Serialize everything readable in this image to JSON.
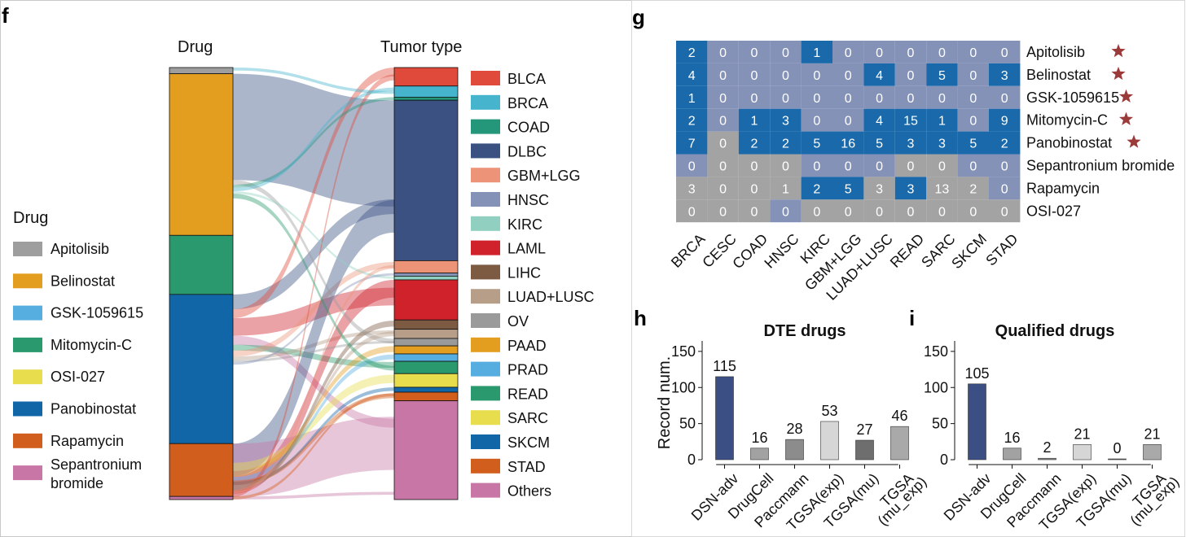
{
  "panels": {
    "f": "f",
    "g": "g",
    "h": "h",
    "i": "i"
  },
  "colors": {
    "Apitolisib": "#9e9e9e",
    "Belinostat": "#e39e1f",
    "GSK-1059615": "#56ade0",
    "Mitomycin-C": "#2a9a6e",
    "OSI-027": "#e7dd4d",
    "Panobinostat": "#1166a8",
    "Rapamycin": "#d15e1d",
    "Sepantronium bromide": "#c776a6",
    "heatmap_significant": "#1a6aab",
    "heatmap_rest": "#8592b8",
    "heatmap_grey": "#a3a3a3",
    "bar_highlight": "#3b4f85",
    "star": "#9c3a3a",
    "value_highlight": "#9c3a3a"
  },
  "sankey": {
    "left_header": "Drug",
    "right_header": "Tumor type",
    "legend_title": "Drug",
    "drug_legend": [
      {
        "label": "Apitolisib",
        "color": "#9e9e9e"
      },
      {
        "label": "Belinostat",
        "color": "#e39e1f"
      },
      {
        "label": "GSK-1059615",
        "color": "#56ade0"
      },
      {
        "label": "Mitomycin-C",
        "color": "#2a9a6e"
      },
      {
        "label": "OSI-027",
        "color": "#e7dd4d"
      },
      {
        "label": "Panobinostat",
        "color": "#1166a8"
      },
      {
        "label": "Rapamycin",
        "color": "#d15e1d"
      },
      {
        "label": "Sepantronium",
        "label2": "bromide",
        "color": "#c776a6"
      }
    ],
    "drug_bar": [
      {
        "name": "Apitolisib",
        "color": "#9e9e9e",
        "weight": 1
      },
      {
        "name": "Belinostat",
        "color": "#e39e1f",
        "weight": 26
      },
      {
        "name": "Mitomycin-C",
        "color": "#2a9a6e",
        "weight": 9.5
      },
      {
        "name": "Panobinostat",
        "color": "#1166a8",
        "weight": 24
      },
      {
        "name": "Rapamycin",
        "color": "#d15e1d",
        "weight": 8.5
      },
      {
        "name": "Sepantronium bromide",
        "color": "#c776a6",
        "weight": 0.5
      }
    ],
    "tumor_legend": [
      {
        "label": "BLCA",
        "color": "#df4a3a"
      },
      {
        "label": "BRCA",
        "color": "#46b4cc"
      },
      {
        "label": "COAD",
        "color": "#24977a"
      },
      {
        "label": "DLBC",
        "color": "#3a5182"
      },
      {
        "label": "GBM+LGG",
        "color": "#ec9378"
      },
      {
        "label": "HNSC",
        "color": "#8492b7"
      },
      {
        "label": "KIRC",
        "color": "#91d0c0"
      },
      {
        "label": "LAML",
        "color": "#d0222a"
      },
      {
        "label": "LIHC",
        "color": "#7d5b42"
      },
      {
        "label": "LUAD+LUSC",
        "color": "#b69e88"
      },
      {
        "label": "OV",
        "color": "#9a9a9a"
      },
      {
        "label": "PAAD",
        "color": "#e39e1f"
      },
      {
        "label": "PRAD",
        "color": "#56ade0"
      },
      {
        "label": "READ",
        "color": "#2a9a6e"
      },
      {
        "label": "SARC",
        "color": "#e7dd4d"
      },
      {
        "label": "SKCM",
        "color": "#1166a8"
      },
      {
        "label": "STAD",
        "color": "#d15e1d"
      },
      {
        "label": "Others",
        "color": "#c776a6"
      }
    ],
    "tumor_bar": [
      {
        "name": "BLCA",
        "color": "#df4a3a",
        "weight": 3
      },
      {
        "name": "BRCA",
        "color": "#46b4cc",
        "weight": 1.8
      },
      {
        "name": "COAD",
        "color": "#24977a",
        "weight": 0.5
      },
      {
        "name": "DLBC",
        "color": "#3a5182",
        "weight": 26
      },
      {
        "name": "GBM+LGG",
        "color": "#ec9378",
        "weight": 2
      },
      {
        "name": "HNSC",
        "color": "#8492b7",
        "weight": 0.5
      },
      {
        "name": "KIRC",
        "color": "#91d0c0",
        "weight": 0.6
      },
      {
        "name": "LAML",
        "color": "#d0222a",
        "weight": 6.5
      },
      {
        "name": "LIHC",
        "color": "#7d5b42",
        "weight": 1.5
      },
      {
        "name": "LUAD+LUSC",
        "color": "#b69e88",
        "weight": 1.5
      },
      {
        "name": "OV",
        "color": "#9a9a9a",
        "weight": 1.2
      },
      {
        "name": "PAAD",
        "color": "#e39e1f",
        "weight": 1.3
      },
      {
        "name": "PRAD",
        "color": "#56ade0",
        "weight": 1.2
      },
      {
        "name": "READ",
        "color": "#2a9a6e",
        "weight": 2
      },
      {
        "name": "SARC",
        "color": "#e7dd4d",
        "weight": 2.2
      },
      {
        "name": "SKCM",
        "color": "#1166a8",
        "weight": 0.8
      },
      {
        "name": "STAD",
        "color": "#d15e1d",
        "weight": 1.4
      },
      {
        "name": "Others",
        "color": "#c776a6",
        "weight": 16
      }
    ]
  },
  "chart_data": [
    {
      "type": "heatmap",
      "panel": "g",
      "columns": [
        "BRCA",
        "CESC",
        "COAD",
        "HNSC",
        "KIRC",
        "GBM+LGG",
        "LUAD+LUSC",
        "READ",
        "SARC",
        "SKCM",
        "STAD"
      ],
      "rows": [
        "Apitolisib",
        "Belinostat",
        "GSK-1059615",
        "Mitomycin-C",
        "Panobinostat",
        "Sepantronium bromide",
        "Rapamycin",
        "OSI-027"
      ],
      "starred_rows": [
        "Apitolisib",
        "Belinostat",
        "GSK-1059615",
        "Mitomycin-C",
        "Panobinostat"
      ],
      "values": [
        [
          2,
          0,
          0,
          0,
          1,
          0,
          0,
          0,
          0,
          0,
          0
        ],
        [
          4,
          0,
          0,
          0,
          0,
          0,
          4,
          0,
          5,
          0,
          3
        ],
        [
          1,
          0,
          0,
          0,
          0,
          0,
          0,
          0,
          0,
          0,
          0
        ],
        [
          2,
          0,
          1,
          3,
          0,
          0,
          4,
          15,
          1,
          0,
          9
        ],
        [
          7,
          0,
          2,
          2,
          5,
          16,
          5,
          3,
          3,
          5,
          2
        ],
        [
          0,
          0,
          0,
          0,
          0,
          0,
          0,
          0,
          0,
          0,
          0
        ],
        [
          3,
          0,
          0,
          1,
          2,
          5,
          3,
          3,
          13,
          2,
          0
        ],
        [
          0,
          0,
          0,
          0,
          0,
          0,
          0,
          0,
          0,
          0,
          0
        ]
      ],
      "cell_color_class": [
        [
          "S",
          "R",
          "R",
          "R",
          "S",
          "R",
          "R",
          "R",
          "R",
          "R",
          "R"
        ],
        [
          "S",
          "R",
          "R",
          "R",
          "R",
          "R",
          "S",
          "R",
          "S",
          "R",
          "S"
        ],
        [
          "S",
          "R",
          "R",
          "R",
          "R",
          "R",
          "R",
          "R",
          "R",
          "R",
          "R"
        ],
        [
          "S",
          "R",
          "S",
          "S",
          "R",
          "R",
          "S",
          "S",
          "S",
          "R",
          "S"
        ],
        [
          "S",
          "G",
          "S",
          "S",
          "S",
          "S",
          "S",
          "S",
          "S",
          "S",
          "S"
        ],
        [
          "R",
          "G",
          "G",
          "G",
          "R",
          "R",
          "R",
          "G",
          "G",
          "R",
          "R"
        ],
        [
          "G",
          "G",
          "G",
          "G",
          "S",
          "S",
          "G",
          "S",
          "G",
          "G",
          "R"
        ],
        [
          "G",
          "G",
          "G",
          "R",
          "G",
          "G",
          "G",
          "G",
          "G",
          "G",
          "G"
        ]
      ]
    },
    {
      "type": "bar",
      "panel": "h",
      "title": "DTE drugs",
      "ylabel": "Record num.",
      "categories": [
        "DSN-adv",
        "DrugCell",
        "Paccmann",
        "TGSA(exp)",
        "TGSA(mu)",
        "TGSA (mu_exp)"
      ],
      "category_lines": [
        [
          "DSN-adv"
        ],
        [
          "DrugCell"
        ],
        [
          "Paccmann"
        ],
        [
          "TGSA(exp)"
        ],
        [
          "TGSA(mu)"
        ],
        [
          "TGSA",
          "(mu_exp)"
        ]
      ],
      "values": [
        115,
        16,
        28,
        53,
        27,
        46
      ],
      "bar_colors": [
        "#3b4f85",
        "#a2a2a2",
        "#8c8c8c",
        "#d6d6d6",
        "#6e6e6e",
        "#a9a9a9"
      ],
      "ylim": [
        0,
        160
      ],
      "yticks": [
        0,
        50,
        100,
        150
      ]
    },
    {
      "type": "bar",
      "panel": "i",
      "title": "Qualified drugs",
      "ylabel": "",
      "categories": [
        "DSN-adv",
        "DrugCell",
        "Paccmann",
        "TGSA(exp)",
        "TGSA(mu)",
        "TGSA (mu_exp)"
      ],
      "category_lines": [
        [
          "DSN-adv"
        ],
        [
          "DrugCell"
        ],
        [
          "Paccmann"
        ],
        [
          "TGSA(exp)"
        ],
        [
          "TGSA(mu)"
        ],
        [
          "TGSA",
          "(mu_exp)"
        ]
      ],
      "values": [
        105,
        16,
        2,
        21,
        0,
        21
      ],
      "bar_colors": [
        "#3b4f85",
        "#a2a2a2",
        "#8c8c8c",
        "#d6d6d6",
        "#6e6e6e",
        "#a9a9a9"
      ],
      "ylim": [
        0,
        160
      ],
      "yticks": [
        0,
        50,
        100,
        150
      ]
    }
  ]
}
